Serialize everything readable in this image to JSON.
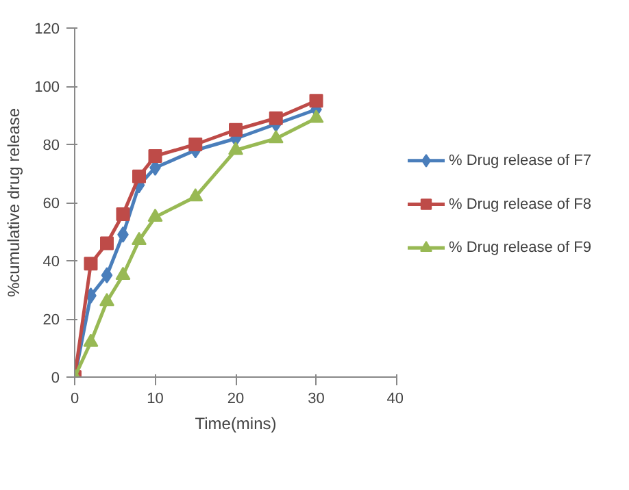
{
  "chart_data": {
    "type": "line",
    "xlabel": "Time(mins)",
    "ylabel": "%cumulative drug release",
    "x": [
      0,
      2,
      4,
      6,
      8,
      10,
      15,
      20,
      25,
      30
    ],
    "series": [
      {
        "name": "% Drug release of F7",
        "color": "#4a7ebb",
        "marker": "diamond",
        "values": [
          0,
          28,
          35,
          49,
          66,
          72,
          78,
          82,
          87,
          92
        ]
      },
      {
        "name": "% Drug release of F8",
        "color": "#be4b48",
        "marker": "square",
        "values": [
          0,
          39,
          46,
          56,
          69,
          76,
          80,
          85,
          89,
          95
        ]
      },
      {
        "name": "% Drug release of F9",
        "color": "#98b954",
        "marker": "triangle",
        "values": [
          0,
          12,
          26,
          35,
          47,
          55,
          62,
          78,
          82,
          89
        ]
      }
    ],
    "xlim": [
      0,
      40
    ],
    "ylim": [
      0,
      120
    ],
    "xticks": [
      0,
      10,
      20,
      30,
      40
    ],
    "yticks": [
      0,
      20,
      40,
      60,
      80,
      100,
      120
    ],
    "grid": false,
    "legend": "right",
    "line_style": "solid"
  }
}
